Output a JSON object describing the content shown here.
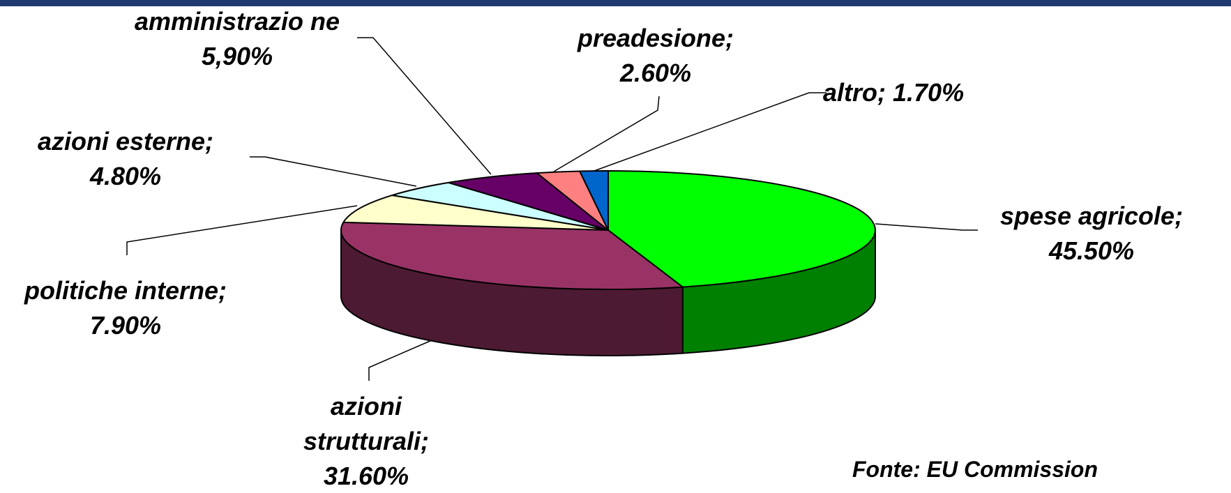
{
  "chart_data": {
    "type": "pie3d",
    "categories": [
      "spese agricole;",
      "azioni strutturali;",
      "politiche interne;",
      "azioni esterne;",
      "amministrazio ne",
      "preadesione;",
      "altro;"
    ],
    "values": [
      45.5,
      31.6,
      7.9,
      4.8,
      5.9,
      2.6,
      1.7
    ],
    "value_labels": [
      "45.50%",
      "31.60%",
      "7.90%",
      "4.80%",
      "5,90%",
      "2.60%",
      "1.70%"
    ],
    "colors": [
      "#00ff00",
      "#993366",
      "#ffffcc",
      "#ccffff",
      "#660066",
      "#ff8080",
      "#0066cc"
    ],
    "side_colors": [
      "#008000",
      "#4d1a33",
      "#c8c89e",
      "#9ec8c8",
      "#3d003d",
      "#c86060",
      "#004c99"
    ],
    "source": "Fonte: EU Commission"
  }
}
